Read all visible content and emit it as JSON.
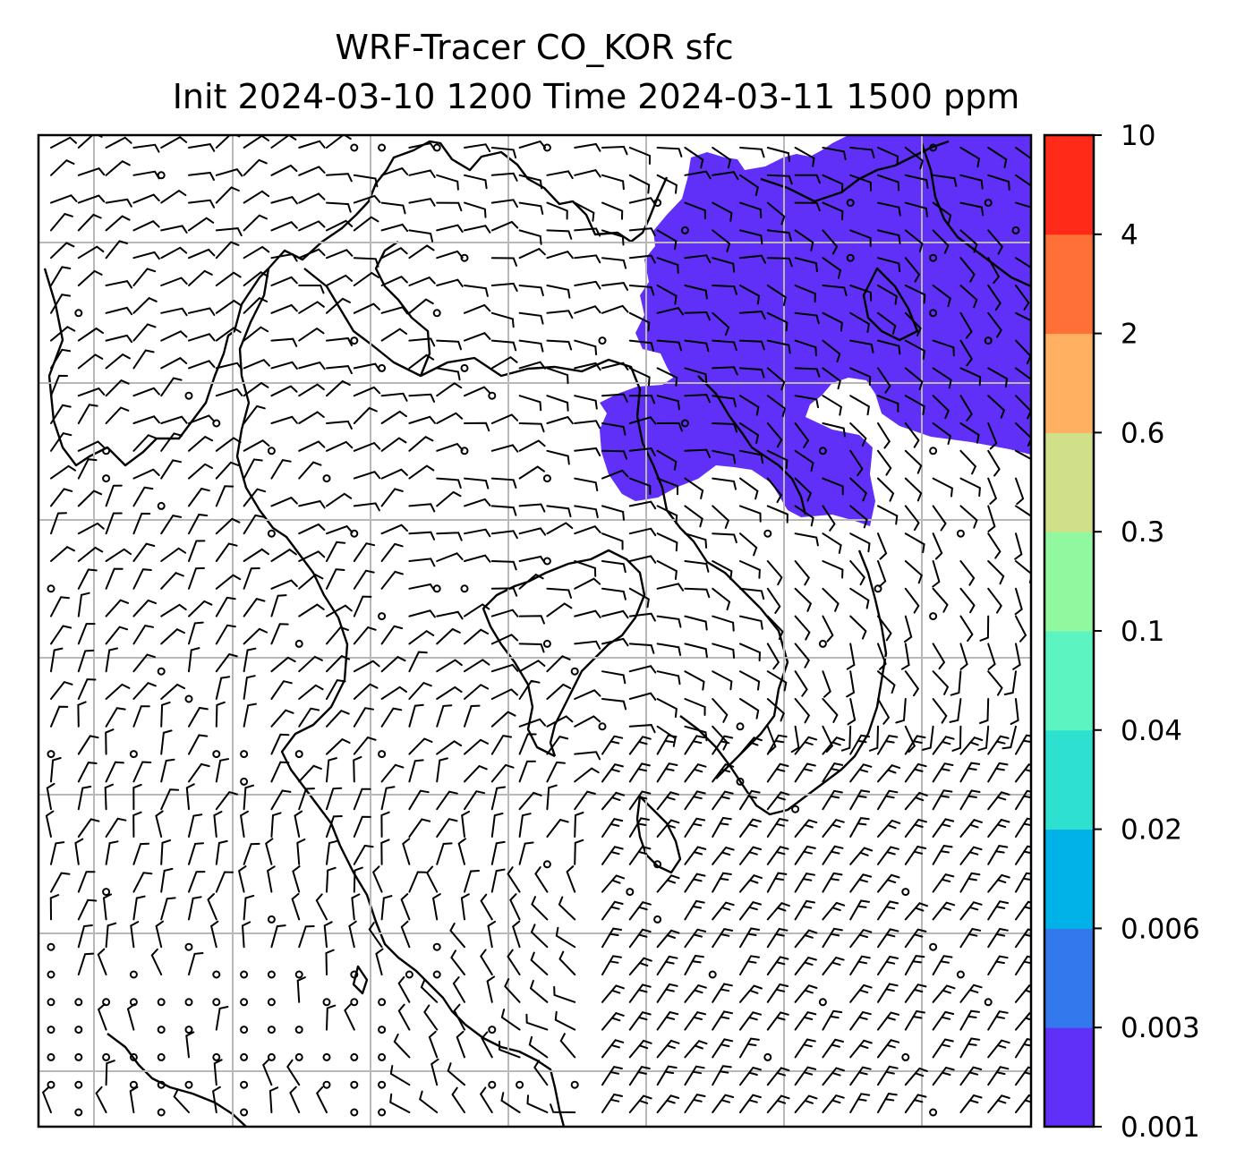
{
  "title": {
    "line1": "WRF-Tracer CO_KOR sfc",
    "line2": "Init 2024-03-10 1200 Time 2024-03-11 1500 ppm"
  },
  "colorbar": {
    "ticks": [
      "0.001",
      "0.003",
      "0.006",
      "0.02",
      "0.04",
      "0.1",
      "0.3",
      "0.6",
      "2",
      "4",
      "10"
    ],
    "colors": [
      "#6030f8",
      "#3478ee",
      "#00b2e8",
      "#2ee0d0",
      "#5cf4c0",
      "#92f8a0",
      "#d0e088",
      "#ffb060",
      "#ff7038",
      "#ff2a18"
    ]
  },
  "map": {
    "plume_color": "#6030f8",
    "grid_color": "#b8b8b8",
    "grid": "on",
    "wind_field": "barbs",
    "tracer_level_shown": "0.001–0.003 ppm"
  }
}
